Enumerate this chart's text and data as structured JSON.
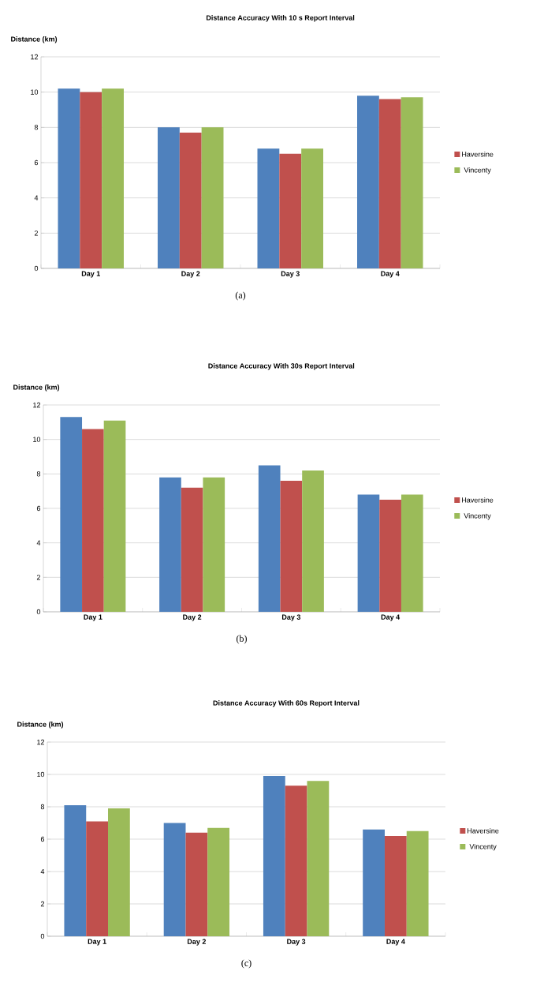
{
  "chart_data": [
    {
      "type": "bar",
      "title": "Distance Accuracy With 10 s Report Interval",
      "ylabel": "Distance (km)",
      "categories": [
        "Day 1",
        "Day 2",
        "Day 3",
        "Day 4"
      ],
      "series": [
        {
          "color": "#4f81bd",
          "values": [
            10.2,
            8.0,
            6.8,
            9.8
          ]
        },
        {
          "name": "Haversine",
          "color": "#c0504d",
          "values": [
            10.0,
            7.7,
            6.5,
            9.6
          ]
        },
        {
          "name": "Vincenty",
          "color": "#9bbb59",
          "values": [
            10.2,
            8.0,
            6.8,
            9.7
          ]
        }
      ],
      "ylim": [
        0,
        12
      ],
      "yticks": [
        0,
        2,
        4,
        6,
        8,
        10,
        12
      ],
      "grid": "y",
      "legend": "right",
      "annotations": [
        "(a)"
      ]
    },
    {
      "type": "bar",
      "title": "Distance Accuracy With 30s Report Interval",
      "ylabel": "Distance (km)",
      "categories": [
        "Day 1",
        "Day 2",
        "Day 3",
        "Day 4"
      ],
      "series": [
        {
          "color": "#4f81bd",
          "values": [
            11.3,
            7.8,
            8.5,
            6.8
          ]
        },
        {
          "name": "Haversine",
          "color": "#c0504d",
          "values": [
            10.6,
            7.2,
            7.6,
            6.5
          ]
        },
        {
          "name": "Vincenty",
          "color": "#9bbb59",
          "values": [
            11.1,
            7.8,
            8.2,
            6.8
          ]
        }
      ],
      "ylim": [
        0,
        12
      ],
      "yticks": [
        0,
        2,
        4,
        6,
        8,
        10,
        12
      ],
      "grid": "y",
      "legend": "right",
      "annotations": [
        "(b)"
      ]
    },
    {
      "type": "bar",
      "title": "Distance Accuracy With 60s Report Interval",
      "ylabel": "Distance (km)",
      "categories": [
        "Day 1",
        "Day 2",
        "Day 3",
        "Day 4"
      ],
      "series": [
        {
          "color": "#4f81bd",
          "values": [
            8.1,
            7.0,
            9.9,
            6.6
          ]
        },
        {
          "name": "Haversine",
          "color": "#c0504d",
          "values": [
            7.1,
            6.4,
            9.3,
            6.2
          ]
        },
        {
          "name": "Vincenty",
          "color": "#9bbb59",
          "values": [
            7.9,
            6.7,
            9.6,
            6.5
          ]
        }
      ],
      "ylim": [
        0,
        12
      ],
      "yticks": [
        0,
        2,
        4,
        6,
        8,
        10,
        12
      ],
      "grid": "y",
      "legend": "right",
      "annotations": [
        "(c)"
      ]
    }
  ]
}
